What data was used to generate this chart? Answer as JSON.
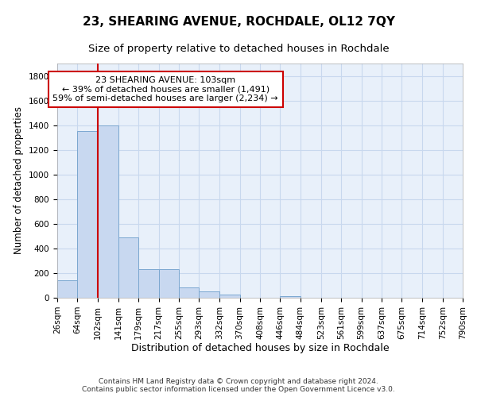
{
  "title": "23, SHEARING AVENUE, ROCHDALE, OL12 7QY",
  "subtitle": "Size of property relative to detached houses in Rochdale",
  "xlabel": "Distribution of detached houses by size in Rochdale",
  "ylabel": "Number of detached properties",
  "bar_color": "#c8d8f0",
  "bar_edge_color": "#7ba7d0",
  "grid_color": "#c8d8ee",
  "background_color": "#e8f0fa",
  "annotation_line1": "23 SHEARING AVENUE: 103sqm",
  "annotation_line2": "← 39% of detached houses are smaller (1,491)",
  "annotation_line3": "59% of semi-detached houses are larger (2,234) →",
  "annotation_box_color": "#ffffff",
  "annotation_box_edge": "#cc0000",
  "red_line_x": 102,
  "red_line_color": "#cc0000",
  "bins": [
    26,
    64,
    102,
    141,
    179,
    217,
    255,
    293,
    332,
    370,
    408,
    446,
    484,
    523,
    561,
    599,
    637,
    675,
    714,
    752,
    790
  ],
  "counts": [
    140,
    1350,
    1400,
    490,
    230,
    230,
    85,
    50,
    25,
    0,
    0,
    15,
    0,
    0,
    0,
    0,
    0,
    0,
    0,
    0
  ],
  "ylim": [
    0,
    1900
  ],
  "yticks": [
    0,
    200,
    400,
    600,
    800,
    1000,
    1200,
    1400,
    1600,
    1800
  ],
  "footer_text": "Contains HM Land Registry data © Crown copyright and database right 2024.\nContains public sector information licensed under the Open Government Licence v3.0.",
  "title_fontsize": 11,
  "subtitle_fontsize": 9.5,
  "ylabel_fontsize": 8.5,
  "xlabel_fontsize": 9,
  "tick_fontsize": 7.5,
  "footer_fontsize": 6.5,
  "ann_fontsize": 8
}
